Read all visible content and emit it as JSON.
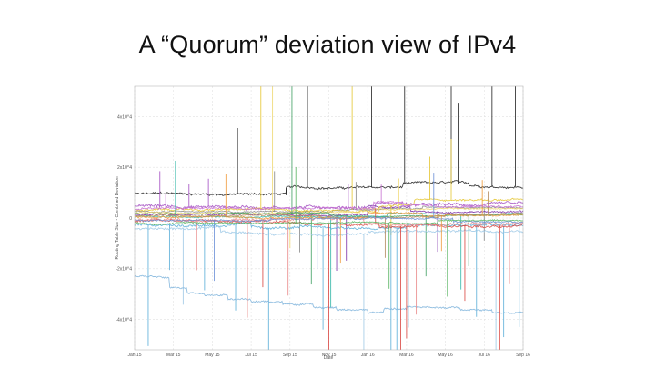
{
  "slide": {
    "title": "A “Quorum” deviation view of IPv4"
  },
  "chart_data": {
    "type": "line",
    "title": "",
    "xlabel": "Date",
    "ylabel": "Routing Table Size - Combined Deviation",
    "x_ticks": [
      "Jan 15",
      "Mar 15",
      "May 15",
      "Jul 15",
      "Sep 15",
      "Nov 15",
      "Jan 16",
      "Mar 16",
      "May 16",
      "Jul 16",
      "Sep 16"
    ],
    "y_ticks": [
      "4x10^4",
      "2x10^4",
      "0",
      "-2x10^4",
      "-4x10^4"
    ],
    "y_tick_values": [
      40000,
      20000,
      0,
      -20000,
      -40000
    ],
    "xlim": [
      0,
      10
    ],
    "ylim": [
      -52000,
      52000
    ],
    "grid": true,
    "legend": "none",
    "series": [
      {
        "color": "#222222",
        "baseline": 9500,
        "noise": 1200,
        "steps": [
          [
            0.0,
            0
          ],
          [
            3.9,
            2500
          ],
          [
            6.9,
            4000
          ],
          [
            8.6,
            3000
          ]
        ],
        "spikes": [
          [
            2.65,
            26000
          ],
          [
            4.45,
            48000
          ],
          [
            6.1,
            52000
          ],
          [
            6.95,
            52000
          ],
          [
            8.15,
            52000
          ],
          [
            8.35,
            32000
          ],
          [
            9.2,
            52000
          ],
          [
            9.8,
            52000
          ],
          [
            3.9,
            -3000
          ]
        ]
      },
      {
        "color": "#888888",
        "baseline": 2500,
        "noise": 700,
        "steps": [
          [
            0.0,
            0
          ],
          [
            5.1,
            800
          ],
          [
            7.4,
            1600
          ]
        ],
        "spikes": [
          [
            4.25,
            -16000
          ],
          [
            3.6,
            16000
          ],
          [
            5.7,
            11000
          ],
          [
            9.0,
            -13000
          ]
        ]
      },
      {
        "color": "#a34fc2",
        "baseline": 4500,
        "noise": 1500,
        "steps": [
          [
            0.0,
            0
          ],
          [
            6.2,
            1500
          ],
          [
            7.0,
            500
          ]
        ],
        "spikes": [
          [
            0.65,
            14000
          ],
          [
            1.4,
            9000
          ],
          [
            1.9,
            11000
          ],
          [
            5.5,
            9000
          ]
        ]
      },
      {
        "color": "#7b2fa8",
        "baseline": 1200,
        "noise": 900,
        "steps": [
          [
            0.0,
            0
          ],
          [
            6.0,
            3500
          ],
          [
            7.1,
            1500
          ]
        ],
        "spikes": [
          [
            5.2,
            -22000
          ],
          [
            5.45,
            -18000
          ],
          [
            7.8,
            -16000
          ]
        ]
      },
      {
        "color": "#e4c531",
        "baseline": 3200,
        "noise": 1000,
        "steps": [
          [
            0.0,
            0
          ],
          [
            6.3,
            2000
          ],
          [
            7.2,
            4000
          ]
        ],
        "spikes": [
          [
            3.25,
            52000
          ],
          [
            8.15,
            24000
          ],
          [
            5.6,
            52000
          ],
          [
            7.6,
            17000
          ],
          [
            6.6,
            -12000
          ]
        ]
      },
      {
        "color": "#f0d770",
        "baseline": 2100,
        "noise": 700,
        "steps": [
          [
            0.0,
            0
          ],
          [
            5.8,
            1500
          ]
        ],
        "spikes": [
          [
            3.55,
            52000
          ],
          [
            4.0,
            -14000
          ],
          [
            6.8,
            12000
          ]
        ]
      },
      {
        "color": "#3f9e62",
        "baseline": 1800,
        "noise": 600,
        "steps": [
          [
            0.0,
            0
          ],
          [
            5.0,
            -800
          ]
        ],
        "spikes": [
          [
            4.05,
            52000
          ],
          [
            4.55,
            -28000
          ],
          [
            7.5,
            -24000
          ],
          [
            8.6,
            -20000
          ]
        ]
      },
      {
        "color": "#2fb5a5",
        "baseline": 600,
        "noise": 700,
        "steps": [
          [
            0.0,
            0
          ],
          [
            6.5,
            1200
          ]
        ],
        "spikes": [
          [
            1.05,
            22000
          ],
          [
            5.05,
            -36000
          ],
          [
            8.4,
            -30000
          ]
        ]
      },
      {
        "color": "#5aaed8",
        "baseline": -2500,
        "noise": 1400,
        "steps": [
          [
            0.0,
            0
          ],
          [
            3.0,
            -1500
          ],
          [
            7.0,
            -500
          ]
        ],
        "spikes": [
          [
            0.35,
            -48000
          ],
          [
            0.9,
            -18000
          ],
          [
            1.8,
            -26000
          ],
          [
            2.6,
            -34000
          ],
          [
            3.45,
            -52000
          ],
          [
            4.85,
            -40000
          ],
          [
            6.6,
            -52000
          ],
          [
            6.75,
            -52000
          ],
          [
            8.8,
            -36000
          ],
          [
            9.5,
            -44000
          ],
          [
            9.9,
            -40000
          ]
        ]
      },
      {
        "color": "#9ec9e6",
        "baseline": -4200,
        "noise": 1200,
        "steps": [
          [
            0.0,
            0
          ],
          [
            2.2,
            -2000
          ],
          [
            6.0,
            -1000
          ]
        ],
        "spikes": [
          [
            1.25,
            -30000
          ],
          [
            3.15,
            -22000
          ],
          [
            5.9,
            -46000
          ],
          [
            7.05,
            -38000
          ],
          [
            9.3,
            -50000
          ]
        ]
      },
      {
        "color": "#7fb4dc",
        "baseline": -23000,
        "noise": 900,
        "steps": [
          [
            0.0,
            0
          ],
          [
            0.9,
            -4000
          ],
          [
            1.35,
            -6000
          ],
          [
            1.8,
            -7000
          ],
          [
            2.4,
            -9000
          ],
          [
            3.0,
            -10000
          ],
          [
            3.8,
            -11000
          ],
          [
            4.6,
            -12000
          ],
          [
            5.2,
            -13000
          ],
          [
            6.0,
            -14500
          ],
          [
            6.4,
            -13000
          ],
          [
            7.0,
            -12000
          ],
          [
            7.6,
            -12500
          ],
          [
            8.4,
            -13000
          ],
          [
            9.2,
            -14000
          ]
        ],
        "spikes": []
      },
      {
        "color": "#d9453f",
        "baseline": -1300,
        "noise": 1300,
        "steps": [
          [
            0.0,
            0
          ],
          [
            3.4,
            -800
          ],
          [
            6.3,
            -2200
          ],
          [
            7.3,
            -1400
          ]
        ],
        "spikes": [
          [
            2.9,
            -38000
          ],
          [
            3.3,
            -26000
          ],
          [
            5.0,
            -52000
          ],
          [
            6.85,
            -52000
          ],
          [
            7.0,
            -44000
          ],
          [
            8.5,
            -30000
          ],
          [
            9.4,
            -52000
          ],
          [
            6.2,
            6000
          ]
        ]
      },
      {
        "color": "#ea8a8a",
        "baseline": -600,
        "noise": 1400,
        "steps": [
          [
            0.0,
            0
          ],
          [
            5.9,
            -1500
          ]
        ],
        "spikes": [
          [
            1.6,
            -20000
          ],
          [
            3.95,
            -30000
          ],
          [
            7.25,
            -36000
          ],
          [
            9.65,
            -24000
          ]
        ]
      },
      {
        "color": "#ef9a3a",
        "baseline": 400,
        "noise": 1000,
        "steps": [
          [
            0.0,
            0
          ],
          [
            6.0,
            1800
          ],
          [
            7.4,
            600
          ]
        ],
        "spikes": [
          [
            2.35,
            17000
          ],
          [
            5.3,
            -18000
          ],
          [
            8.95,
            14000
          ],
          [
            7.9,
            -14000
          ]
        ]
      },
      {
        "color": "#b48b5c",
        "baseline": 900,
        "noise": 900,
        "steps": [
          [
            0.0,
            0
          ],
          [
            4.8,
            -600
          ],
          [
            8.0,
            700
          ]
        ],
        "spikes": [
          [
            6.45,
            -16000
          ],
          [
            9.1,
            9000
          ]
        ]
      },
      {
        "color": "#c76fd1",
        "baseline": 3600,
        "noise": 1100,
        "steps": [
          [
            0.0,
            0
          ],
          [
            6.15,
            2600
          ],
          [
            6.9,
            800
          ]
        ],
        "spikes": [
          [
            6.35,
            7000
          ],
          [
            0.8,
            6000
          ]
        ]
      },
      {
        "color": "#6a8fd6",
        "baseline": -800,
        "noise": 900,
        "steps": [
          [
            0.0,
            0
          ],
          [
            3.5,
            700
          ],
          [
            8.2,
            -400
          ]
        ],
        "spikes": [
          [
            2.05,
            -24000
          ],
          [
            4.7,
            -20000
          ],
          [
            7.7,
            18000
          ]
        ]
      },
      {
        "color": "#55b35f",
        "baseline": -1900,
        "noise": 800,
        "steps": [
          [
            0.0,
            0
          ],
          [
            7.8,
            900
          ]
        ],
        "spikes": [
          [
            4.15,
            22000
          ],
          [
            6.55,
            -26000
          ],
          [
            8.05,
            -30000
          ]
        ]
      }
    ]
  }
}
